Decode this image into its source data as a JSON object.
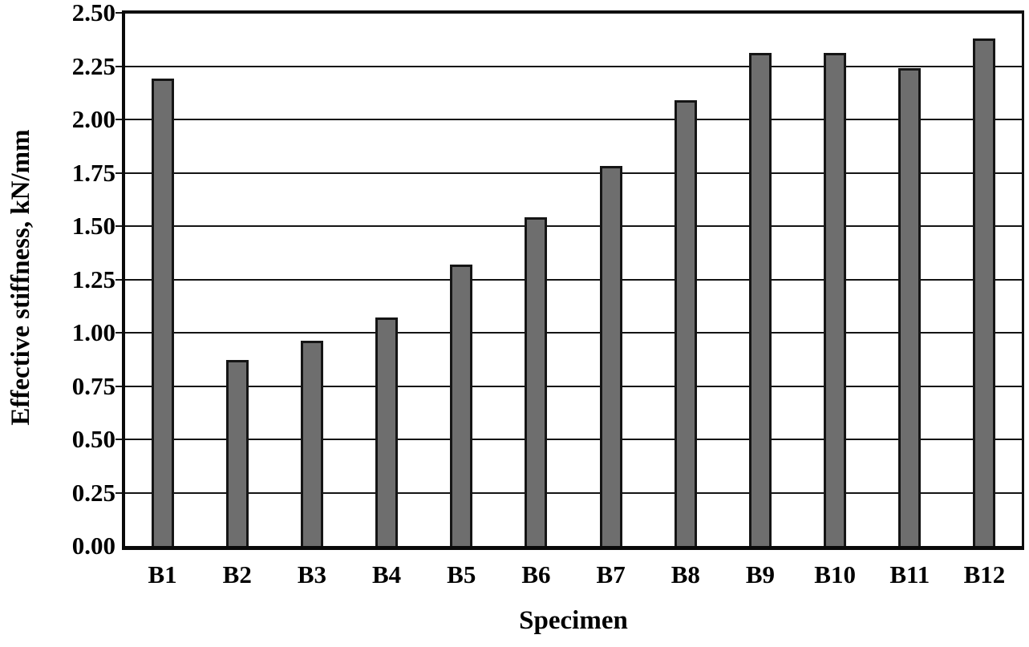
{
  "chart_data": {
    "type": "bar",
    "title": "",
    "categories": [
      "B1",
      "B2",
      "B3",
      "B4",
      "B5",
      "B6",
      "B7",
      "B8",
      "B9",
      "B10",
      "B11",
      "B12"
    ],
    "values": [
      2.18,
      0.86,
      0.95,
      1.06,
      1.31,
      1.53,
      1.77,
      2.08,
      2.3,
      2.3,
      2.23,
      2.37
    ],
    "xlabel": "Specimen",
    "ylabel": "Effective stiffness, kN/mm",
    "ylim": [
      0,
      2.5
    ],
    "ytick_step": 0.25,
    "ytick_labels": [
      "0.00",
      "0.25",
      "0.50",
      "0.75",
      "1.00",
      "1.25",
      "1.50",
      "1.75",
      "2.00",
      "2.25",
      "2.50"
    ],
    "grid": "horizontal",
    "legend": "none",
    "colors": {
      "bar_fill": "#6e6e6e",
      "bar_border": "#151515",
      "axis": "#0a0a0a",
      "gridline": "#141414",
      "text": "#000000",
      "background": "#ffffff"
    }
  }
}
